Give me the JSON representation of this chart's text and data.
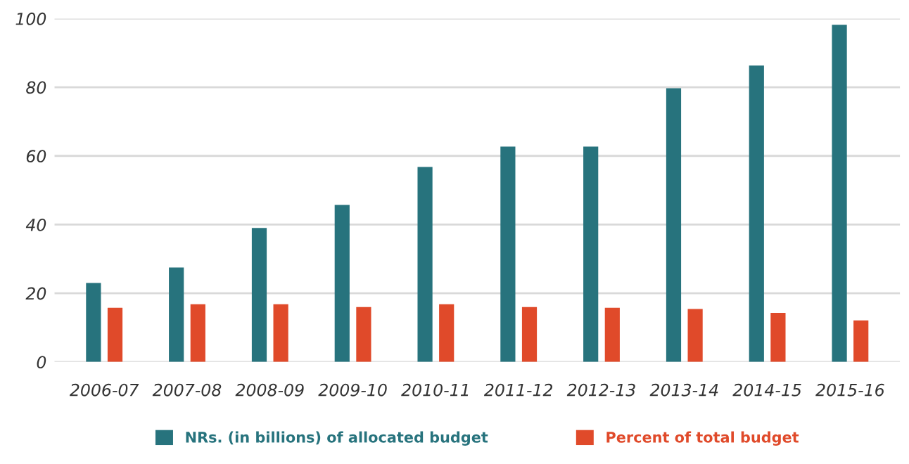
{
  "chart_data": {
    "type": "bar",
    "categories": [
      "2006-07",
      "2007-08",
      "2008-09",
      "2009-10",
      "2010-11",
      "2011-12",
      "2012-13",
      "2013-14",
      "2014-15",
      "2015-16"
    ],
    "series": [
      {
        "name": "NRs. (in billions) of allocated budget",
        "color": "#27737d",
        "values": [
          23,
          27.5,
          39,
          45.7,
          56.8,
          62.7,
          62.7,
          79.7,
          86.3,
          98.2
        ]
      },
      {
        "name": "Percent of total budget",
        "color": "#e04a2a",
        "values": [
          15.8,
          16.8,
          16.8,
          16,
          16.8,
          16,
          15.8,
          15.4,
          14.3,
          12.1
        ]
      }
    ],
    "ylim": [
      0,
      100
    ],
    "yticks": [
      0,
      20,
      40,
      60,
      80,
      100
    ],
    "grid": "y",
    "legend": "bottom"
  }
}
